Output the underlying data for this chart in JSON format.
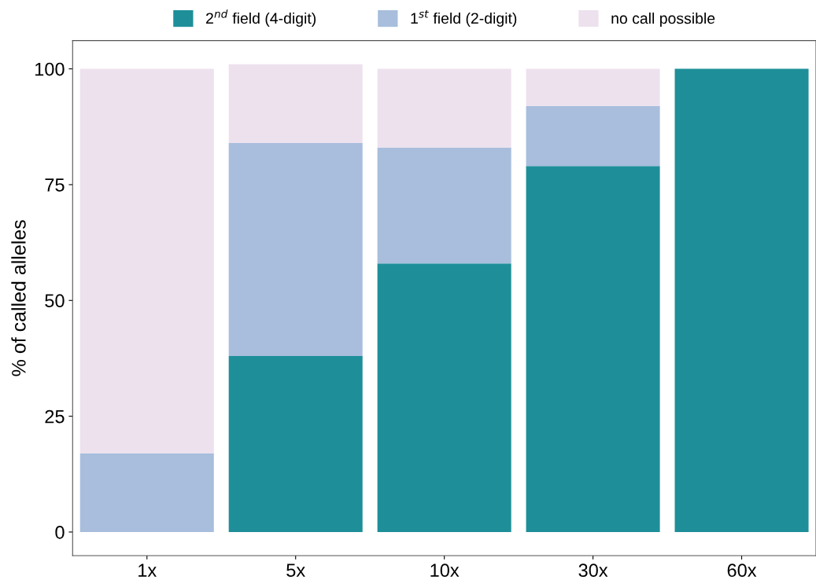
{
  "chart_data": {
    "type": "bar",
    "stacked": true,
    "ylabel": "% of called alleles",
    "categories": [
      "1x",
      "5x",
      "10x",
      "30x",
      "60x"
    ],
    "series": [
      {
        "name": "2$^{nd}$ field (4-digit)",
        "color": "#1e8f99",
        "values": [
          0,
          38,
          58,
          79,
          100
        ]
      },
      {
        "name": "1$^{st}$ field (2-digit)",
        "color": "#a8bedc",
        "values": [
          17,
          46,
          25,
          13,
          0
        ]
      },
      {
        "name": "no call possible",
        "color": "#ede1ee",
        "values": [
          83,
          17,
          17,
          8,
          0
        ]
      }
    ],
    "ylim": [
      -5.1,
      106.1
    ],
    "yticks": [
      0,
      25,
      50,
      75,
      100
    ],
    "grid": false,
    "legend": "top"
  }
}
